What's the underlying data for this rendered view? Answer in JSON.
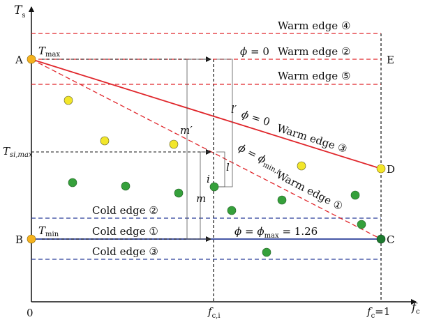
{
  "axes": {
    "y_label": "T",
    "y_label_sub": "s",
    "x_label": "f",
    "x_label_sub": "c",
    "origin": "0",
    "fci_label": "f",
    "fci_sub": "c,i",
    "fc1_label": "f",
    "fc1_sub": "c",
    "fc1_rest": "=1"
  },
  "points": {
    "A": "A",
    "B": "B",
    "C": "C",
    "D": "D",
    "E": "E",
    "i": "i"
  },
  "temps": {
    "tmax": "T",
    "tmax_sub": "max",
    "tmin": "T",
    "tmin_sub": "min",
    "tsimax": "T",
    "tsimax_sub": "si,max"
  },
  "warm_edges": {
    "e4": "Warm edge ④",
    "e2": "Warm edge ②",
    "e5": "Warm edge ⑤",
    "e3": "Warm edge ③",
    "e1": "Warm edge ①"
  },
  "cold_edges": {
    "e2": "Cold edge ②",
    "e1": "Cold edge ①",
    "e3": "Cold edge ③"
  },
  "phi": {
    "symbol": "ϕ",
    "eq": " = ",
    "zero": "0",
    "min_sub": "min,",
    "min_i": "i",
    "max_sub": "max",
    "max_val": " = 1.26"
  },
  "dims": {
    "m_prime": "m′",
    "m": "m",
    "l_prime": "l′",
    "l": "l"
  },
  "colors": {
    "warm": "#e0262b",
    "cold": "#2b3f9a",
    "yellow_pt": "#f2e62a",
    "green_pt": "#35a03b",
    "dark_green_pt": "#1d7a2f",
    "orange_pt": "#f5b21e"
  }
}
